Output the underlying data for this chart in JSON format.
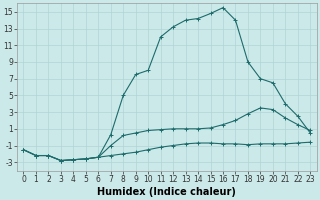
{
  "title": "",
  "xlabel": "Humidex (Indice chaleur)",
  "ylabel": "",
  "bg_color": "#cce9e9",
  "grid_color": "#b0d4d4",
  "line_color": "#1d6b6b",
  "x": [
    0,
    1,
    2,
    3,
    4,
    5,
    6,
    7,
    8,
    9,
    10,
    11,
    12,
    13,
    14,
    15,
    16,
    17,
    18,
    19,
    20,
    21,
    22,
    23
  ],
  "line1": [
    -1.5,
    -2.2,
    -2.2,
    -2.8,
    -2.7,
    -2.6,
    -2.4,
    -2.2,
    -2.0,
    -1.8,
    -1.5,
    -1.2,
    -1.0,
    -0.8,
    -0.7,
    -0.7,
    -0.8,
    -0.8,
    -0.9,
    -0.8,
    -0.8,
    -0.8,
    -0.7,
    -0.6
  ],
  "line2": [
    -1.5,
    -2.2,
    -2.2,
    -2.8,
    -2.7,
    -2.6,
    -2.4,
    -1.0,
    0.2,
    0.5,
    0.8,
    0.9,
    1.0,
    1.0,
    1.0,
    1.1,
    1.5,
    2.0,
    2.8,
    3.5,
    3.3,
    2.3,
    1.5,
    0.8
  ],
  "line3": [
    -1.5,
    -2.2,
    -2.2,
    -2.8,
    -2.7,
    -2.6,
    -2.4,
    0.3,
    5.0,
    7.5,
    8.0,
    12.0,
    13.2,
    14.0,
    14.2,
    14.8,
    15.5,
    14.0,
    9.0,
    7.0,
    6.5,
    4.0,
    2.5,
    0.5
  ],
  "xlim": [
    -0.5,
    23.5
  ],
  "ylim": [
    -4,
    16
  ],
  "xticks": [
    0,
    1,
    2,
    3,
    4,
    5,
    6,
    7,
    8,
    9,
    10,
    11,
    12,
    13,
    14,
    15,
    16,
    17,
    18,
    19,
    20,
    21,
    22,
    23
  ],
  "yticks": [
    -3,
    -1,
    1,
    3,
    5,
    7,
    9,
    11,
    13,
    15
  ],
  "tick_fontsize": 5.5,
  "xlabel_fontsize": 7,
  "marker": "+",
  "marker_size": 2.5,
  "linewidth": 0.8
}
